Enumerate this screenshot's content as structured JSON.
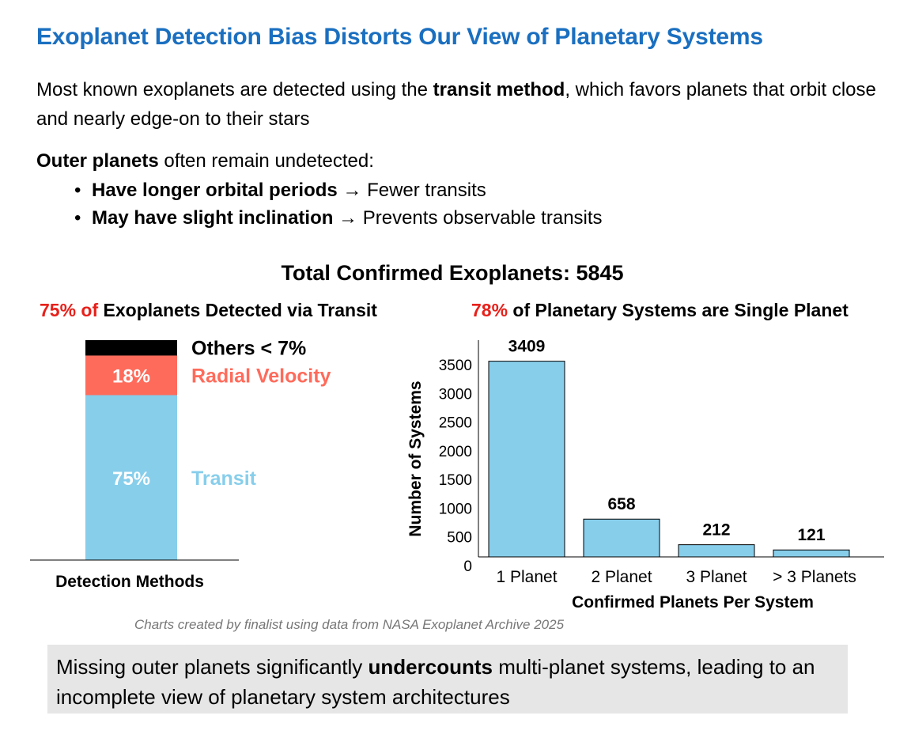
{
  "title": "Exoplanet Detection Bias Distorts Our View of Planetary Systems",
  "intro": {
    "pre": "Most known exoplanets are detected using the ",
    "bold": "transit method",
    "post": ", which favors planets that orbit close and nearly edge-on to their stars"
  },
  "outer": {
    "bold": "Outer planets",
    "rest": " often remain undetected:",
    "bullets": [
      {
        "bold": "Have longer orbital periods",
        "rest": " → Fewer transits"
      },
      {
        "bold": "May have slight inclination",
        "rest": " → Prevents observable transits"
      }
    ]
  },
  "total_label": "Total Confirmed Exoplanets: 5845",
  "left_subtitle": {
    "highlight": "75% of",
    "rest": " Exoplanets Detected via Transit"
  },
  "right_subtitle": {
    "highlight": "78%",
    "rest": " of Planetary Systems are Single Planet"
  },
  "colors": {
    "title": "#1a6fc0",
    "highlight": "#e8201a",
    "transit": "#87ceeb",
    "radial": "#ff6b5b",
    "others": "#000000"
  },
  "chart_data": [
    {
      "type": "bar",
      "stacked": true,
      "categories": [
        "Detection Methods"
      ],
      "xlabel": "Detection Methods",
      "series": [
        {
          "name": "Transit",
          "value": 75,
          "label": "75%",
          "color": "#87ceeb"
        },
        {
          "name": "Radial Velocity",
          "value": 18,
          "label": "18%",
          "color": "#ff6b5b"
        },
        {
          "name": "Others < 7%",
          "value": 7,
          "label": "",
          "color": "#000000"
        }
      ],
      "ylim": [
        0,
        100
      ]
    },
    {
      "type": "bar",
      "categories": [
        "1 Planet",
        "2 Planet",
        "3 Planet",
        "> 3 Planets"
      ],
      "values": [
        3409,
        658,
        212,
        121
      ],
      "xlabel": "Confirmed Planets Per System",
      "ylabel": "Number of Systems",
      "yticks": [
        0,
        500,
        1000,
        1500,
        2000,
        2500,
        3000,
        3500
      ],
      "ylim": [
        0,
        3600
      ],
      "bar_color": "#87ceeb",
      "grid": false
    }
  ],
  "source_note": "Charts created by finalist using data from NASA Exoplanet Archive 2025",
  "conclusion": {
    "pre": "Missing outer planets significantly ",
    "bold": "undercounts",
    "post": " multi-planet systems, leading to an incomplete view of planetary system architectures"
  }
}
